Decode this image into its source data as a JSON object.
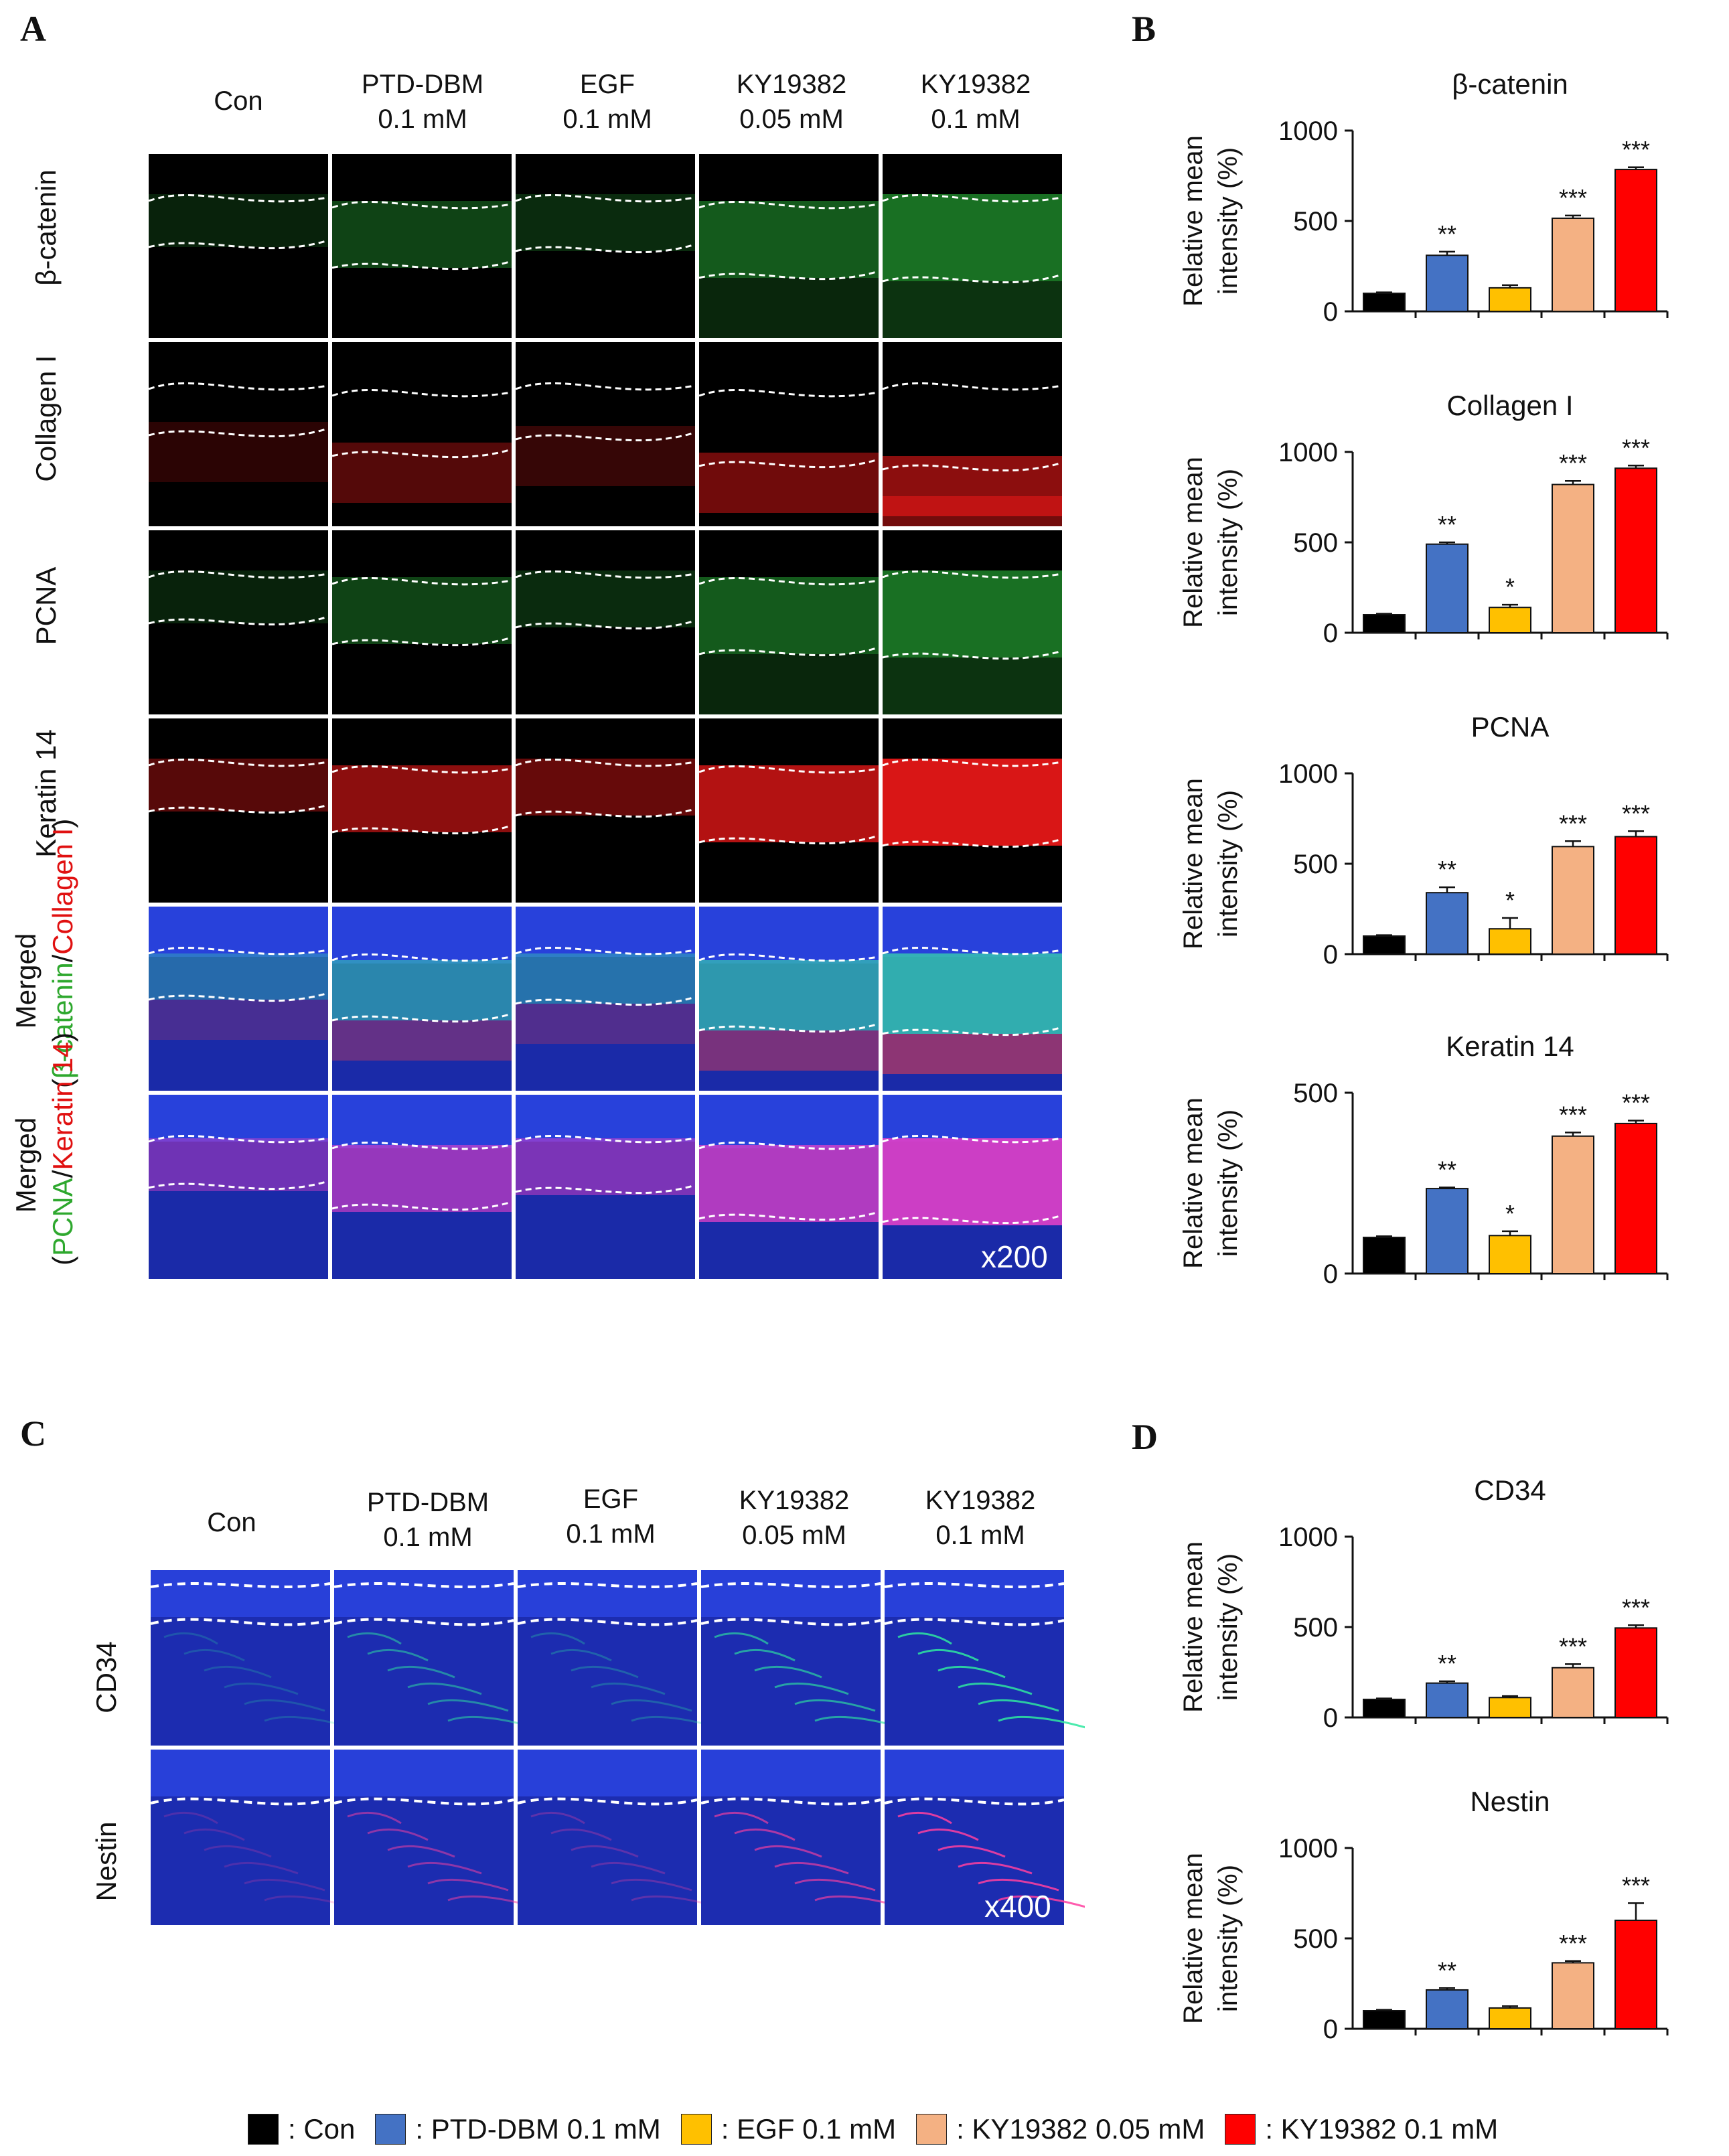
{
  "panels": {
    "A": "A",
    "B": "B",
    "C": "C",
    "D": "D"
  },
  "groups": [
    "Con",
    "PTD-DBM\n0.1 mM",
    "EGF\n0.1 mM",
    "KY19382\n0.05 mM",
    "KY19382\n0.1 mM"
  ],
  "panelA": {
    "rows": [
      "β-catenin",
      "Collagen I",
      "PCNA",
      "Keratin 14"
    ],
    "merged1": {
      "prefix": "Merged",
      "open": "(",
      "green": "β-catenin",
      "slash": "/",
      "red": "Collagen I",
      "close": ")"
    },
    "merged2": {
      "prefix": "Merged",
      "open": "(",
      "green": "PCNA",
      "slash": "/",
      "red": "Keratin 14",
      "close": ")"
    },
    "magnification": "x200"
  },
  "panelC": {
    "rows": [
      "CD34",
      "Nestin"
    ],
    "magnification": "x400"
  },
  "colors": {
    "con": "#000000",
    "ptd": "#4472C4",
    "egf": "#FFC000",
    "ky005": "#F4B183",
    "ky01": "#FF0000",
    "dapi": "#1a2fd0",
    "green_stain": "#2ee82e",
    "red_stain": "#ff2020"
  },
  "legend": [
    {
      "label": ": Con",
      "color": "#000000"
    },
    {
      "label": ": PTD-DBM 0.1 mM",
      "color": "#4472C4"
    },
    {
      "label": ": EGF 0.1 mM",
      "color": "#FFC000"
    },
    {
      "label": ": KY19382 0.05 mM",
      "color": "#F4B183"
    },
    {
      "label": ": KY19382 0.1 mM",
      "color": "#FF0000"
    }
  ],
  "chart_data": [
    {
      "type": "bar",
      "title": "β-catenin",
      "ylabel": "Relative mean intensity (%)",
      "ylim": [
        0,
        1000
      ],
      "yticks": [
        0,
        500,
        1000
      ],
      "values": [
        100,
        310,
        130,
        515,
        785
      ],
      "errors": [
        5,
        20,
        15,
        15,
        12
      ],
      "sig": [
        "",
        "**",
        "",
        "***",
        "***"
      ]
    },
    {
      "type": "bar",
      "title": "Collagen I",
      "ylabel": "Relative mean intensity (%)",
      "ylim": [
        0,
        1000
      ],
      "yticks": [
        0,
        500,
        1000
      ],
      "values": [
        100,
        490,
        140,
        820,
        910
      ],
      "errors": [
        5,
        10,
        15,
        20,
        15
      ],
      "sig": [
        "",
        "**",
        "*",
        "***",
        "***"
      ]
    },
    {
      "type": "bar",
      "title": "PCNA",
      "ylabel": "Relative mean intensity (%)",
      "ylim": [
        0,
        1000
      ],
      "yticks": [
        0,
        500,
        1000
      ],
      "values": [
        100,
        340,
        140,
        595,
        650
      ],
      "errors": [
        5,
        30,
        60,
        30,
        30
      ],
      "sig": [
        "",
        "**",
        "*",
        "***",
        "***"
      ]
    },
    {
      "type": "bar",
      "title": "Keratin 14",
      "ylabel": "Relative mean intensity (%)",
      "ylim": [
        0,
        500
      ],
      "yticks": [
        0,
        500
      ],
      "values": [
        100,
        235,
        105,
        380,
        415
      ],
      "errors": [
        3,
        3,
        12,
        10,
        8
      ],
      "sig": [
        "",
        "**",
        "*",
        "***",
        "***"
      ]
    },
    {
      "type": "bar",
      "title": "CD34",
      "ylabel": "Relative mean intensity (%)",
      "ylim": [
        0,
        1000
      ],
      "yticks": [
        0,
        500,
        1000
      ],
      "values": [
        100,
        190,
        110,
        275,
        495
      ],
      "errors": [
        5,
        10,
        8,
        20,
        15
      ],
      "sig": [
        "",
        "**",
        "",
        "***",
        "***"
      ]
    },
    {
      "type": "bar",
      "title": "Nestin",
      "ylabel": "Relative mean intensity (%)",
      "ylim": [
        0,
        1000
      ],
      "yticks": [
        0,
        500,
        1000
      ],
      "values": [
        100,
        215,
        115,
        365,
        600
      ],
      "errors": [
        5,
        10,
        10,
        10,
        95
      ],
      "sig": [
        "",
        "**",
        "",
        "***",
        "***"
      ]
    }
  ]
}
